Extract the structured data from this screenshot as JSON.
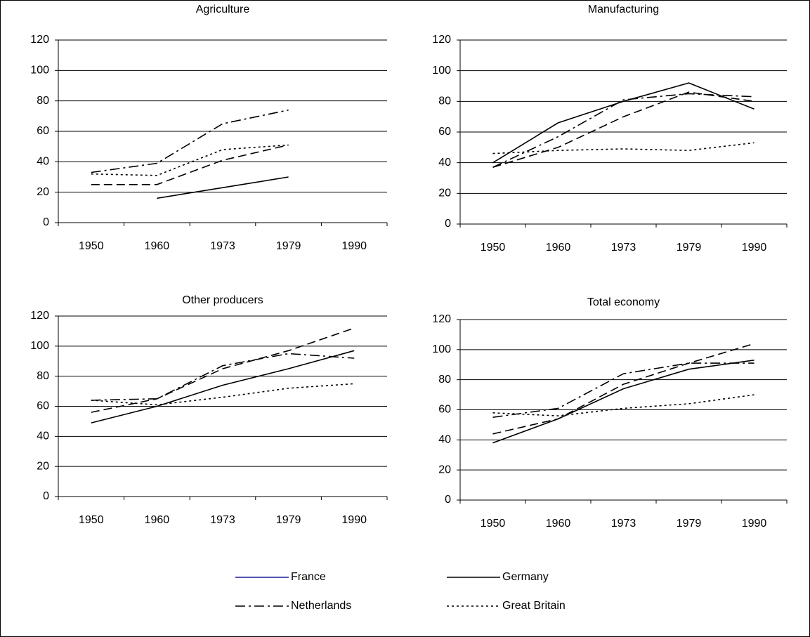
{
  "chart_data": [
    {
      "type": "line",
      "title": "Agriculture",
      "categories": [
        "1950",
        "1960",
        "1973",
        "1979",
        "1990"
      ],
      "ylim": [
        0,
        120
      ],
      "yticks": [
        0,
        20,
        40,
        60,
        80,
        100,
        120
      ],
      "grid": true,
      "series": [
        {
          "color": "#000000",
          "dash": "long-dash",
          "values": [
            25,
            25,
            41,
            51,
            null
          ]
        },
        {
          "color": "#000000",
          "dash": "solid",
          "values": [
            null,
            16,
            23,
            30,
            null
          ]
        },
        {
          "color": "#000000",
          "dash": "dash-dot",
          "values": [
            33,
            39,
            65,
            74,
            null
          ]
        },
        {
          "color": "#000000",
          "dash": "dot",
          "values": [
            32,
            31,
            48,
            51,
            null
          ]
        }
      ]
    },
    {
      "type": "line",
      "title": "Manufacturing",
      "categories": [
        "1950",
        "1960",
        "1973",
        "1979",
        "1990"
      ],
      "ylim": [
        0,
        120
      ],
      "yticks": [
        0,
        20,
        40,
        60,
        80,
        100,
        120
      ],
      "grid": true,
      "series": [
        {
          "color": "#000000",
          "dash": "long-dash",
          "values": [
            37,
            50,
            70,
            86,
            80
          ]
        },
        {
          "color": "#000000",
          "dash": "solid",
          "values": [
            40,
            66,
            80,
            92,
            75
          ]
        },
        {
          "color": "#000000",
          "dash": "dash-dot",
          "values": [
            37,
            57,
            81,
            85,
            83
          ]
        },
        {
          "color": "#000000",
          "dash": "dot",
          "values": [
            46,
            48,
            49,
            48,
            53
          ]
        }
      ]
    },
    {
      "type": "line",
      "title": "Other producers",
      "categories": [
        "1950",
        "1960",
        "1973",
        "1979",
        "1990"
      ],
      "ylim": [
        0,
        120
      ],
      "yticks": [
        0,
        20,
        40,
        60,
        80,
        100,
        120
      ],
      "grid": true,
      "series": [
        {
          "color": "#000000",
          "dash": "long-dash",
          "values": [
            56,
            65,
            85,
            97,
            112
          ]
        },
        {
          "color": "#000000",
          "dash": "solid",
          "values": [
            49,
            60,
            74,
            85,
            97
          ]
        },
        {
          "color": "#000000",
          "dash": "dash-dot",
          "values": [
            64,
            65,
            87,
            95,
            92
          ]
        },
        {
          "color": "#000000",
          "dash": "dot",
          "values": [
            64,
            61,
            66,
            72,
            75
          ]
        }
      ]
    },
    {
      "type": "line",
      "title": "Total economy",
      "categories": [
        "1950",
        "1960",
        "1973",
        "1979",
        "1990"
      ],
      "ylim": [
        0,
        120
      ],
      "yticks": [
        0,
        20,
        40,
        60,
        80,
        100,
        120
      ],
      "grid": true,
      "series": [
        {
          "color": "#000000",
          "dash": "long-dash",
          "values": [
            44,
            54,
            77,
            91,
            104
          ]
        },
        {
          "color": "#000000",
          "dash": "solid",
          "values": [
            38,
            54,
            74,
            87,
            93
          ]
        },
        {
          "color": "#000000",
          "dash": "dash-dot",
          "values": [
            55,
            61,
            84,
            91,
            91
          ]
        },
        {
          "color": "#000000",
          "dash": "dot",
          "values": [
            58,
            56,
            61,
            64,
            70
          ]
        }
      ]
    }
  ],
  "legend": [
    {
      "name": "France",
      "color": "#1c1c9c",
      "dash": "solid"
    },
    {
      "name": "Germany",
      "color": "#000000",
      "dash": "solid"
    },
    {
      "name": "Netherlands",
      "color": "#000000",
      "dash": "dash-dot"
    },
    {
      "name": "Great Britain",
      "color": "#000000",
      "dash": "dot"
    }
  ]
}
